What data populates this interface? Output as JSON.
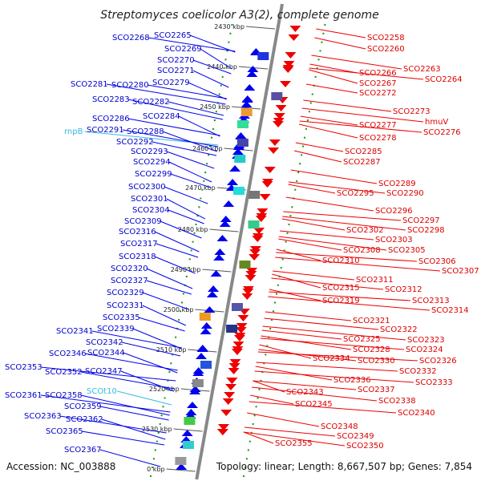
{
  "title": "Streptomyces coelicolor A3(2), complete genome",
  "footer": {
    "accession": "Accession: NC_003888",
    "topology": "Topology: linear; Length: 8,667,507 bp; Genes: 7,854"
  },
  "colors": {
    "left_strand": "#0000ee",
    "right_strand": "#ee0000",
    "label_cyan": "#33bbdd",
    "backbone": "#888888",
    "tick_green": "#119911"
  },
  "ticks": [
    {
      "label": "2430 kbp"
    },
    {
      "label": "2440 kbp"
    },
    {
      "label": "2450 kbp"
    },
    {
      "label": "2460 kbp"
    },
    {
      "label": "2470 kbp"
    },
    {
      "label": "2480 kbp"
    },
    {
      "label": "2490 kbp"
    },
    {
      "label": "2500 kbp"
    },
    {
      "label": "2510 kbp"
    },
    {
      "label": "2520 kbp"
    },
    {
      "label": "2530 kbp"
    },
    {
      "label": "0 kbp"
    }
  ],
  "left_genes": [
    {
      "label": "SCO2268"
    },
    {
      "label": "SCO2265"
    },
    {
      "label": "SCO2269"
    },
    {
      "label": "SCO2270"
    },
    {
      "label": "SCO2271"
    },
    {
      "label": "SCO2281"
    },
    {
      "label": "SCO2280"
    },
    {
      "label": "SCO2279"
    },
    {
      "label": "SCO2283"
    },
    {
      "label": "SCO2282"
    },
    {
      "label": "SCO2286"
    },
    {
      "label": "SCO2284"
    },
    {
      "label": "rnpB",
      "kind": "cyan"
    },
    {
      "label": "SCO2291"
    },
    {
      "label": "SCO2288"
    },
    {
      "label": "SCO2292"
    },
    {
      "label": "SCO2293"
    },
    {
      "label": "SCO2294"
    },
    {
      "label": "SCO2299"
    },
    {
      "label": "SCO2300"
    },
    {
      "label": "SCO2301"
    },
    {
      "label": "SCO2304"
    },
    {
      "label": "SCO2309"
    },
    {
      "label": "SCO2316"
    },
    {
      "label": "SCO2317"
    },
    {
      "label": "SCO2318"
    },
    {
      "label": "SCO2320"
    },
    {
      "label": "SCO2327"
    },
    {
      "label": "SCO2329"
    },
    {
      "label": "SCO2331"
    },
    {
      "label": "SCO2335"
    },
    {
      "label": "SCO2341"
    },
    {
      "label": "SCO2339"
    },
    {
      "label": "SCO2342"
    },
    {
      "label": "SCO2346"
    },
    {
      "label": "SCO2344"
    },
    {
      "label": "SCO2353"
    },
    {
      "label": "SCO2352"
    },
    {
      "label": "SCO2347"
    },
    {
      "label": "SCOt10",
      "kind": "cyan"
    },
    {
      "label": "SCO2361"
    },
    {
      "label": "SCO2358"
    },
    {
      "label": "SCO2359"
    },
    {
      "label": "SCO2363"
    },
    {
      "label": "SCO2362"
    },
    {
      "label": "SCO2365"
    },
    {
      "label": "SCO2367"
    }
  ],
  "right_genes": [
    {
      "label": "SCO2258"
    },
    {
      "label": "SCO2260"
    },
    {
      "label": "SCO2263"
    },
    {
      "label": "SCO2266"
    },
    {
      "label": "SCO2264"
    },
    {
      "label": "SCO2267"
    },
    {
      "label": "SCO2272"
    },
    {
      "label": "SCO2273"
    },
    {
      "label": "hmuV"
    },
    {
      "label": "SCO2277"
    },
    {
      "label": "SCO2276"
    },
    {
      "label": "SCO2278"
    },
    {
      "label": "SCO2285"
    },
    {
      "label": "SCO2287"
    },
    {
      "label": "SCO2289"
    },
    {
      "label": "SCO2295"
    },
    {
      "label": "SCO2290"
    },
    {
      "label": "SCO2296"
    },
    {
      "label": "SCO2297"
    },
    {
      "label": "SCO2302"
    },
    {
      "label": "SCO2298"
    },
    {
      "label": "SCO2303"
    },
    {
      "label": "SCO2308"
    },
    {
      "label": "SCO2305"
    },
    {
      "label": "SCO2306"
    },
    {
      "label": "SCO2310"
    },
    {
      "label": "SCO2307"
    },
    {
      "label": "SCO2311"
    },
    {
      "label": "SCO2312"
    },
    {
      "label": "SCO2315"
    },
    {
      "label": "SCO2313"
    },
    {
      "label": "SCO2319"
    },
    {
      "label": "SCO2314"
    },
    {
      "label": "SCO2321"
    },
    {
      "label": "SCO2322"
    },
    {
      "label": "SCO2323"
    },
    {
      "label": "SCO2325"
    },
    {
      "label": "SCO2324"
    },
    {
      "label": "SCO2328"
    },
    {
      "label": "SCO2326"
    },
    {
      "label": "SCO2330"
    },
    {
      "label": "SCO2334"
    },
    {
      "label": "SCO2332"
    },
    {
      "label": "SCO2333"
    },
    {
      "label": "SCO2336"
    },
    {
      "label": "SCO2337"
    },
    {
      "label": "SCO2343"
    },
    {
      "label": "SCO2338"
    },
    {
      "label": "SCO2345"
    },
    {
      "label": "SCO2340"
    },
    {
      "label": "SCO2348"
    },
    {
      "label": "SCO2349"
    },
    {
      "label": "SCO2355"
    },
    {
      "label": "SCO2350"
    }
  ]
}
